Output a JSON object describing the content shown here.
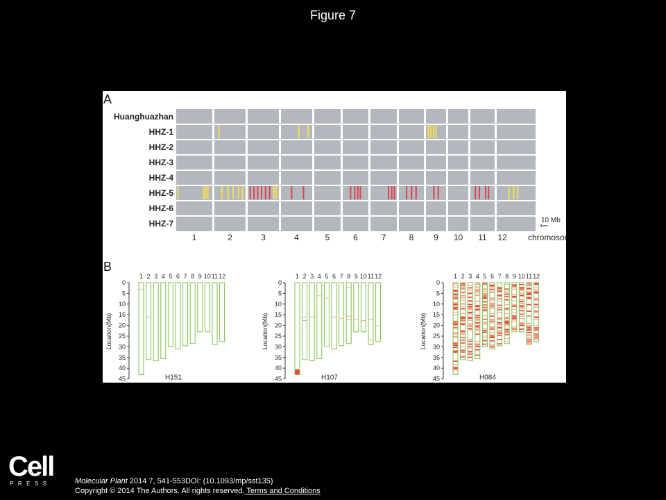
{
  "page": {
    "title": "Figure 7"
  },
  "panel_a": {
    "label": "A",
    "rows": [
      "Huanghuazhan",
      "HHZ-1",
      "HHZ-2",
      "HHZ-3",
      "HHZ-4",
      "HHZ-5",
      "HHZ-6",
      "HHZ-7"
    ],
    "chromosomes": [
      "1",
      "2",
      "3",
      "4",
      "5",
      "6",
      "7",
      "8",
      "9",
      "10",
      "11",
      "12"
    ],
    "axis_suffix": "chromosome",
    "scale_label": "10 Mb",
    "colors": {
      "background": "#b2b8be",
      "variant_yellow": "#ffe24a",
      "variant_red": "#e2343c",
      "divider": "#ffffff"
    },
    "markers": [
      {
        "row": "HHZ-1",
        "chr": "9",
        "color": "yellow",
        "positions": [
          0.08,
          0.2,
          0.34,
          0.46
        ]
      },
      {
        "row": "HHZ-1",
        "chr": "4",
        "color": "yellow",
        "positions": [
          0.55,
          0.85
        ]
      },
      {
        "row": "HHZ-1",
        "chr": "2",
        "color": "yellow",
        "positions": [
          0.12
        ]
      },
      {
        "row": "HHZ-5",
        "chr": "1",
        "color": "yellow",
        "positions": [
          0.03,
          0.74,
          0.8,
          0.86
        ]
      },
      {
        "row": "HHZ-5",
        "chr": "2",
        "color": "yellow",
        "positions": [
          0.22,
          0.42,
          0.58,
          0.75,
          0.88
        ]
      },
      {
        "row": "HHZ-5",
        "chr": "3",
        "color": "red",
        "positions": [
          0.06,
          0.18,
          0.3,
          0.42,
          0.55,
          0.68
        ]
      },
      {
        "row": "HHZ-5",
        "chr": "3",
        "color": "yellow",
        "positions": [
          0.82,
          0.9
        ]
      },
      {
        "row": "HHZ-5",
        "chr": "4",
        "color": "red",
        "positions": [
          0.32,
          0.7
        ]
      },
      {
        "row": "HHZ-5",
        "chr": "6",
        "color": "red",
        "positions": [
          0.28,
          0.44,
          0.56,
          0.66
        ]
      },
      {
        "row": "HHZ-5",
        "chr": "7",
        "color": "red",
        "positions": [
          0.66,
          0.78,
          0.88
        ]
      },
      {
        "row": "HHZ-5",
        "chr": "8",
        "color": "red",
        "positions": [
          0.28,
          0.48,
          0.66
        ]
      },
      {
        "row": "HHZ-5",
        "chr": "9",
        "color": "red",
        "positions": [
          0.36,
          0.58
        ]
      },
      {
        "row": "HHZ-5",
        "chr": "11",
        "color": "red",
        "positions": [
          0.18,
          0.34,
          0.6,
          0.72
        ]
      },
      {
        "row": "HHZ-5",
        "chr": "12",
        "color": "yellow",
        "positions": [
          0.3,
          0.42,
          0.52
        ]
      }
    ]
  },
  "panel_b": {
    "label": "B",
    "y_label": "Location(Mb)",
    "y_ticks": [
      "0",
      "5",
      "10",
      "15",
      "20",
      "25",
      "30",
      "35",
      "40",
      "45"
    ],
    "chromosomes": [
      "1",
      "2",
      "3",
      "4",
      "5",
      "6",
      "7",
      "8",
      "9",
      "10",
      "11",
      "12"
    ],
    "chromosome_lengths_mb": [
      43,
      36,
      36.5,
      35.5,
      30,
      31,
      29.5,
      28.5,
      23,
      23,
      29,
      27.5
    ],
    "colors": {
      "outline": "#7ec04a",
      "snp": "#e64a3a",
      "snp_light": "#f5a58a"
    },
    "plots": [
      {
        "name": "H151",
        "bands": [
          {
            "chr": "1",
            "pos": 3
          },
          {
            "chr": "2",
            "pos": 16
          }
        ]
      },
      {
        "name": "H107",
        "bands": [
          {
            "chr": "1",
            "pos": 40.5,
            "span": 2.5,
            "color": "snp"
          },
          {
            "chr": "2",
            "pos": 16
          },
          {
            "chr": "2",
            "pos": 17.5
          },
          {
            "chr": "3",
            "pos": 16
          },
          {
            "chr": "4",
            "pos": 6
          },
          {
            "chr": "5",
            "pos": 7
          },
          {
            "chr": "6",
            "pos": 16
          },
          {
            "chr": "7",
            "pos": 16.5
          },
          {
            "chr": "8",
            "pos": 2
          },
          {
            "chr": "8",
            "pos": 15.5
          },
          {
            "chr": "8",
            "pos": 17
          },
          {
            "chr": "9",
            "pos": 17
          },
          {
            "chr": "10",
            "pos": 17.5
          },
          {
            "chr": "11",
            "pos": 17
          },
          {
            "chr": "11",
            "pos": 26.5
          },
          {
            "chr": "12",
            "pos": 20
          }
        ]
      },
      {
        "name": "H084",
        "dense": true
      }
    ]
  },
  "footer": {
    "logo_word": "Cell",
    "logo_sub": "PRESS",
    "journal": "Molecular Plant",
    "citation_rest": " 2014 7, 541-553DOI: (10.1093/mp/sst135)",
    "copyright": "Copyright © 2014 The Authors. All rights reserved.",
    "terms_link": " Terms and Conditions"
  }
}
